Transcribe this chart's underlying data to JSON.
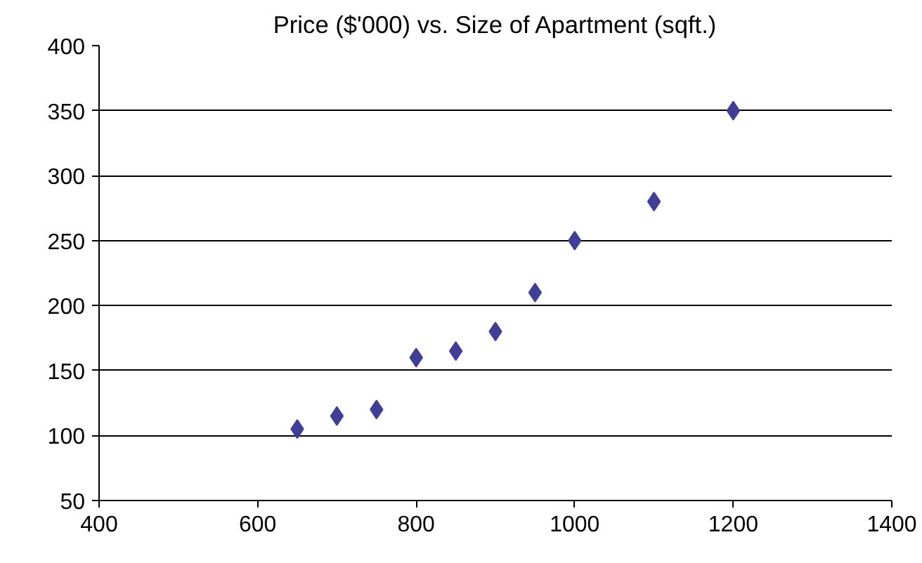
{
  "chart_data": {
    "type": "scatter",
    "title": "Price ($'000) vs. Size of Apartment (sqft.)",
    "x": [
      650,
      700,
      750,
      800,
      850,
      900,
      950,
      1000,
      1100,
      1200
    ],
    "series": [
      {
        "color": "#3f3f9a",
        "values": [
          105,
          115,
          120,
          160,
          165,
          180,
          210,
          250,
          280,
          350
        ]
      }
    ],
    "xlim": [
      400,
      1400
    ],
    "xticks": [
      400,
      600,
      800,
      1000,
      1200,
      1400
    ],
    "ylim": [
      50,
      400
    ],
    "yticks": [
      50,
      100,
      150,
      200,
      250,
      300,
      350,
      400
    ],
    "grid": "y",
    "marker": "diamond"
  }
}
